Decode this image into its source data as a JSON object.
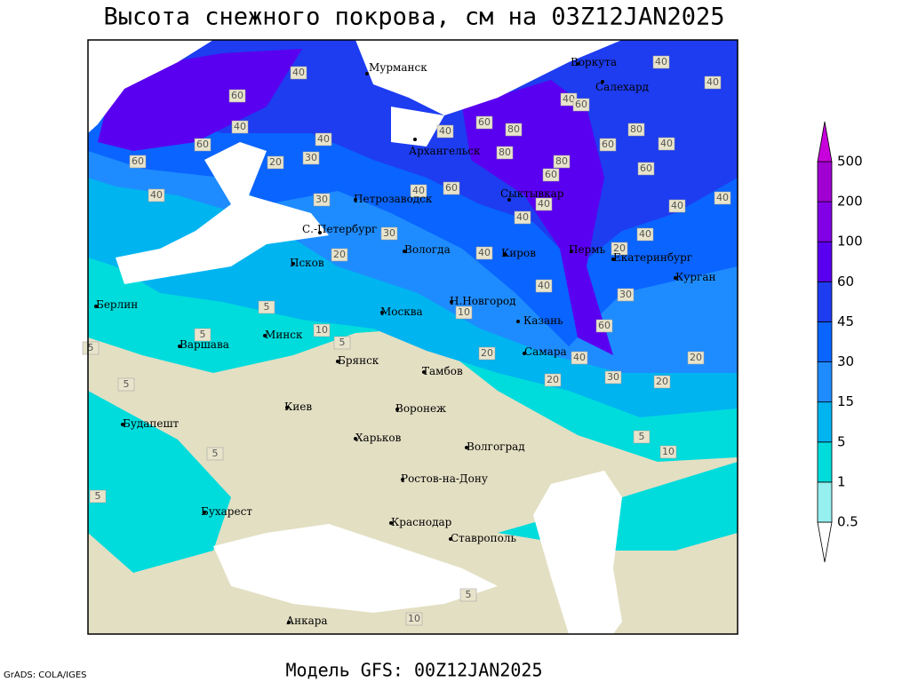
{
  "header": {
    "title": "Высота снежного покрова, см на 03Z12JAN2025"
  },
  "footer": {
    "subtitle": "Модель GFS: 00Z12JAN2025",
    "credit": "GrADS: COLA/IGES"
  },
  "legend": {
    "levels": [
      0.5,
      1,
      5,
      15,
      30,
      45,
      60,
      100,
      200,
      500
    ],
    "colors": [
      "#ffffff",
      "#96f0f0",
      "#00dcdc",
      "#00b4f0",
      "#1e8cff",
      "#0a64ff",
      "#1e3cf0",
      "#5a00f0",
      "#8200e6",
      "#a000d2",
      "#c800dc"
    ]
  },
  "cities": [
    "Мурманск",
    "Воркута",
    "Салехард",
    "Архангельск",
    "Петрозаводск",
    "Сыктывкар",
    "С.-Петербург",
    "Вологда",
    "Киров",
    "Пермь",
    "Екатеринбург",
    "Курган",
    "Псков",
    "Берлин",
    "Н.Новгород",
    "Москва",
    "Казань",
    "Варшава",
    "Минск",
    "Самара",
    "Брянск",
    "Тамбов",
    "Киев",
    "Воронеж",
    "Будапешт",
    "Харьков",
    "Волгоград",
    "Ростов-на-Дону",
    "Бухарест",
    "Краснодар",
    "Ставрополь",
    "Анкара"
  ],
  "contour_labels": [
    40,
    60,
    40,
    60,
    60,
    40,
    20,
    30,
    40,
    30,
    40,
    80,
    80,
    60,
    40,
    60,
    80,
    60,
    40,
    60,
    80,
    60,
    40,
    40,
    40,
    60,
    40,
    40,
    40,
    40,
    40,
    20,
    20,
    40,
    40,
    30,
    30,
    5,
    10,
    5,
    10,
    60,
    40,
    30,
    20,
    20,
    20,
    20,
    5,
    5,
    5,
    5,
    10,
    5,
    5,
    10,
    5
  ]
}
